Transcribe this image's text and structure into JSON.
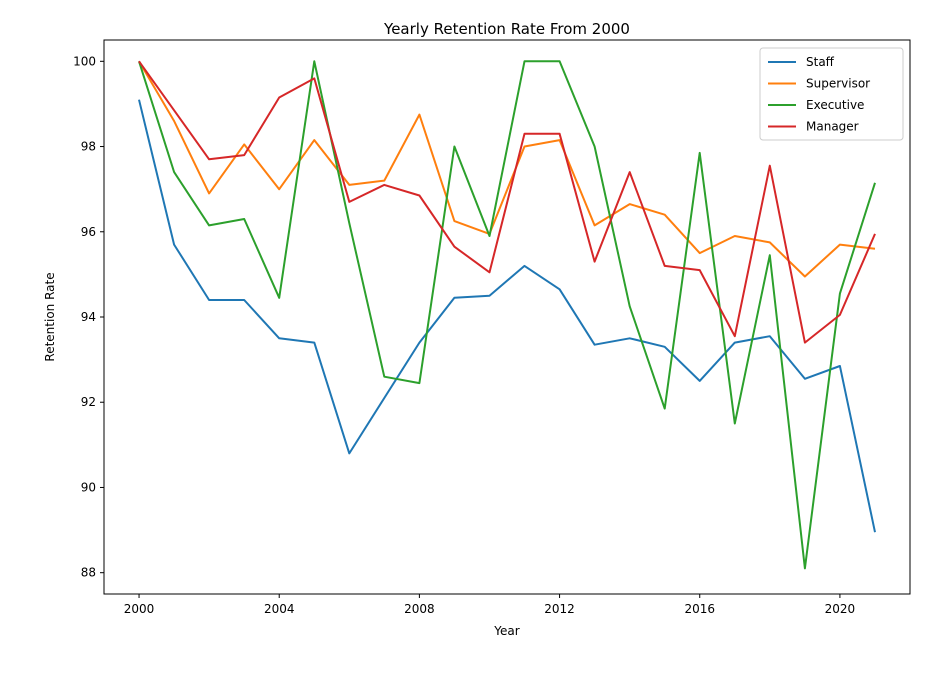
{
  "chart_data": {
    "type": "line",
    "title": "Yearly Retention Rate From 2000",
    "xlabel": "Year",
    "ylabel": "Retention Rate",
    "xlim": [
      1999,
      2022
    ],
    "ylim": [
      87.5,
      100.5
    ],
    "xticks": [
      2000,
      2004,
      2008,
      2012,
      2016,
      2020
    ],
    "yticks": [
      88,
      90,
      92,
      94,
      96,
      98,
      100
    ],
    "grid": false,
    "legend_position": "top-right",
    "x": [
      2000,
      2001,
      2002,
      2003,
      2004,
      2005,
      2006,
      2007,
      2008,
      2009,
      2010,
      2011,
      2012,
      2013,
      2014,
      2015,
      2016,
      2017,
      2018,
      2019,
      2020,
      2021
    ],
    "series": [
      {
        "name": "Staff",
        "color": "#1f77b4",
        "values": [
          99.1,
          95.7,
          94.4,
          94.4,
          93.5,
          93.4,
          90.8,
          92.1,
          93.4,
          94.45,
          94.5,
          95.2,
          94.65,
          93.35,
          93.5,
          93.3,
          92.5,
          93.4,
          93.55,
          92.55,
          92.85,
          88.95
        ]
      },
      {
        "name": "Supervisor",
        "color": "#ff7f0e",
        "values": [
          100.0,
          98.6,
          96.9,
          98.05,
          97.0,
          98.15,
          97.1,
          97.2,
          98.75,
          96.25,
          95.95,
          98.0,
          98.15,
          96.15,
          96.65,
          96.4,
          95.5,
          95.9,
          95.75,
          94.95,
          95.7,
          95.6
        ]
      },
      {
        "name": "Executive",
        "color": "#2ca02c",
        "values": [
          100.0,
          97.4,
          96.15,
          96.3,
          94.45,
          100.0,
          96.2,
          92.6,
          92.45,
          98.0,
          95.9,
          100.0,
          100.0,
          98.0,
          94.25,
          91.85,
          97.85,
          91.5,
          95.45,
          88.1,
          94.55,
          97.15
        ]
      },
      {
        "name": "Manager",
        "color": "#d62728",
        "values": [
          100.0,
          98.85,
          97.7,
          97.8,
          99.15,
          99.6,
          96.7,
          97.1,
          96.85,
          95.65,
          95.05,
          98.3,
          98.3,
          95.3,
          97.4,
          95.2,
          95.1,
          93.55,
          97.55,
          93.4,
          94.05,
          95.95
        ]
      }
    ]
  }
}
